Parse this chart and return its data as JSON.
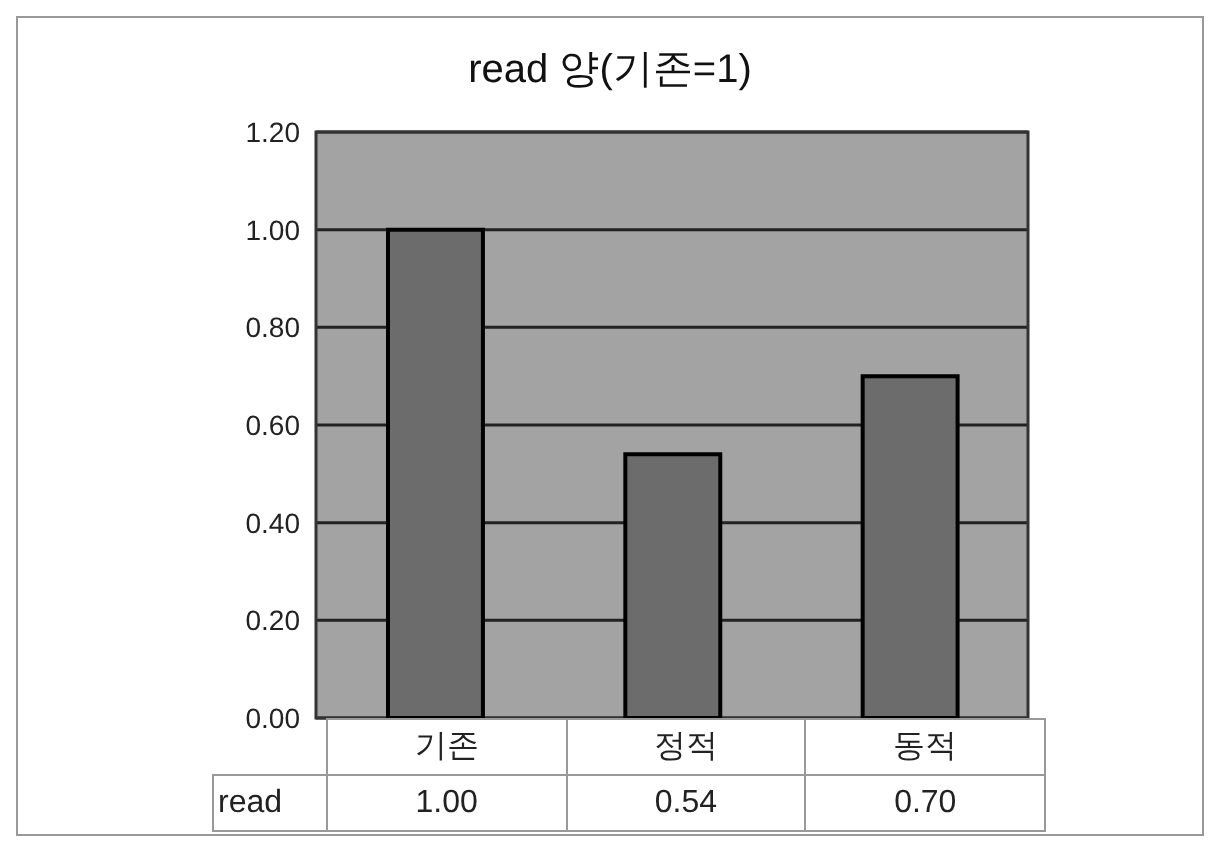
{
  "chart_data": {
    "type": "bar",
    "title": "read 양(기존=1)",
    "categories": [
      "기존",
      "정적",
      "동적"
    ],
    "series": [
      {
        "name": "read",
        "color": "#6c6c6c",
        "values": [
          1.0,
          0.54,
          0.7
        ],
        "value_labels": [
          "1.00",
          "0.54",
          "0.70"
        ]
      }
    ],
    "ylim": [
      0,
      1.2
    ],
    "yticks": [
      {
        "value": 0,
        "label": "0.00"
      },
      {
        "value": 0.2,
        "label": "0.20"
      },
      {
        "value": 0.4,
        "label": "0.40"
      },
      {
        "value": 0.6,
        "label": "0.60"
      },
      {
        "value": 0.8,
        "label": "0.80"
      },
      {
        "value": 1.0,
        "label": "1.00"
      },
      {
        "value": 1.2,
        "label": "1.20"
      }
    ],
    "grid": "y"
  }
}
